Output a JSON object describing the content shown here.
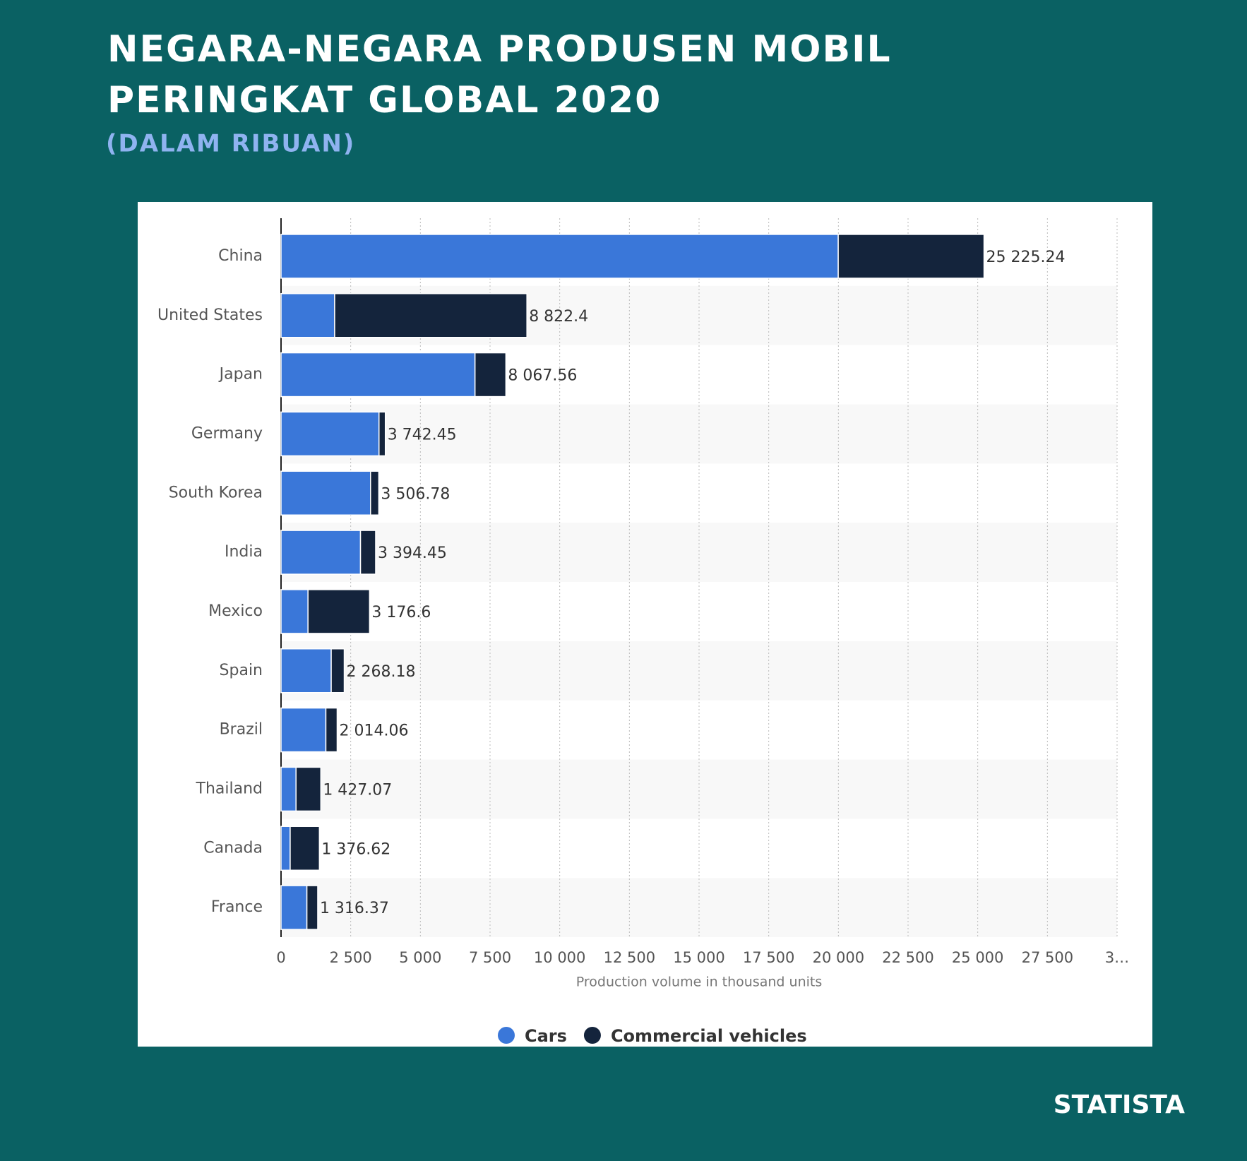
{
  "chart_data": {
    "type": "stacked-bar-horizontal",
    "title_line1": "NEGARA-NEGARA PRODUSEN MOBIL",
    "title_line2": "PERINGKAT GLOBAL 2020",
    "subtitle": "(DALAM RIBUAN)",
    "source": "STATISTA",
    "x_axis_label": "Production volume in thousand units",
    "categories": [
      "China",
      "United States",
      "Japan",
      "Germany",
      "South Korea",
      "India",
      "Mexico",
      "Spain",
      "Brazil",
      "Thailand",
      "Canada",
      "France"
    ],
    "series": [
      {
        "name": "Cars",
        "color": "#3a77d9",
        "values": [
          19994.08,
          1924.4,
          6960.03,
          3515.37,
          3211.71,
          2851.27,
          967.48,
          1800.66,
          1608.87,
          537.63,
          327.68,
          927.72
        ]
      },
      {
        "name": "Commercial vehicles",
        "color": "#14243c",
        "values": [
          5231.16,
          6898,
          1107.53,
          227.08,
          295.07,
          543.18,
          2209.12,
          467.52,
          405.19,
          889.44,
          1048.94,
          388.65
        ]
      }
    ],
    "totals": [
      25225.24,
      8822.4,
      8067.56,
      3742.45,
      3506.78,
      3394.45,
      3176.6,
      2268.18,
      2014.06,
      1427.07,
      1376.62,
      1316.37
    ],
    "total_labels": [
      "25 225.24",
      "8 822.4",
      "8 067.56",
      "3 742.45",
      "3 506.78",
      "3 394.45",
      "3 176.6",
      "2 268.18",
      "2 014.06",
      "1 427.07",
      "1 376.62",
      "1 316.37"
    ],
    "xlim": [
      0,
      30000
    ],
    "xticks": [
      0,
      {
        "value": 2500,
        "label": "2 500"
      },
      {
        "value": 5000,
        "label": "5 000"
      },
      {
        "value": 7500,
        "label": "7 500"
      },
      {
        "value": 10000,
        "label": "10 000"
      },
      {
        "value": 12500,
        "label": "12 500"
      },
      {
        "value": 15000,
        "label": "15 000"
      },
      {
        "value": 17500,
        "label": "17 500"
      },
      {
        "value": 20000,
        "label": "20 000"
      },
      {
        "value": 22500,
        "label": "22 500"
      },
      {
        "value": 25000,
        "label": "25 000"
      },
      {
        "value": 27500,
        "label": "27 500"
      },
      {
        "value": 30000,
        "label": "3…"
      }
    ],
    "grid": true
  }
}
